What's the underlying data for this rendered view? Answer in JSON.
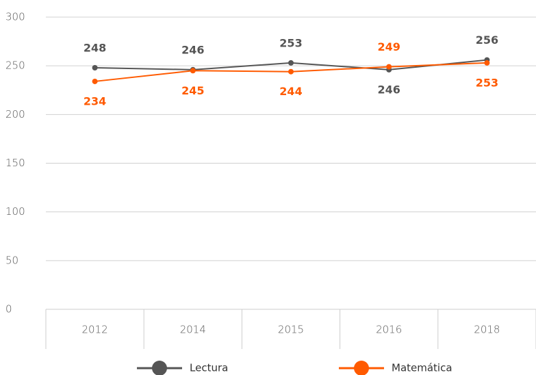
{
  "chart_data": {
    "type": "line",
    "categories": [
      "2012",
      "2014",
      "2015",
      "2016",
      "2018"
    ],
    "series": [
      {
        "name": "Lectura",
        "color": "#555555",
        "values": [
          248,
          246,
          253,
          246,
          256
        ]
      },
      {
        "name": "Matemática",
        "color": "#ff5a00",
        "values": [
          234,
          245,
          244,
          249,
          253
        ]
      }
    ],
    "ylim": [
      0,
      300
    ],
    "yticks": [
      0,
      50,
      100,
      150,
      200,
      250,
      300
    ],
    "grid": true,
    "legend": "bottom"
  }
}
